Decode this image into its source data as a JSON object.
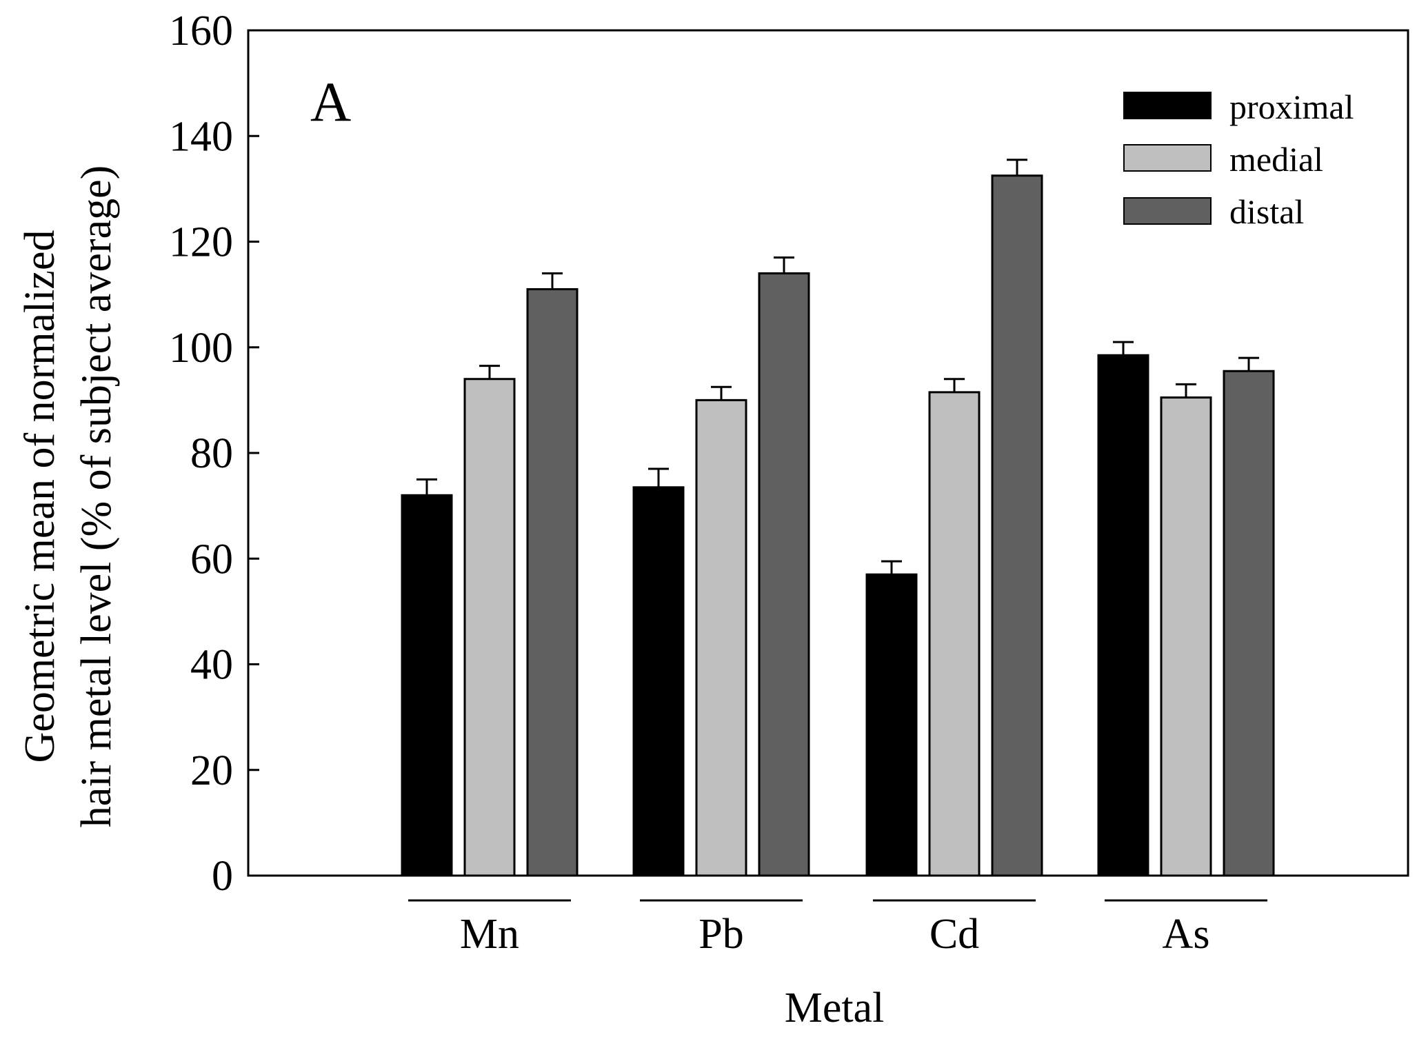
{
  "chart_data": {
    "type": "bar",
    "panel_label": "A",
    "xlabel": "Metal",
    "ylabel_lines": [
      "Geometric mean of normalized",
      "hair metal level (% of subject average)"
    ],
    "ylim": [
      0,
      160
    ],
    "yticks": [
      "0",
      "20",
      "40",
      "60",
      "80",
      "100",
      "120",
      "140",
      "160"
    ],
    "categories": [
      "Mn",
      "Pb",
      "Cd",
      "As"
    ],
    "series": [
      {
        "name": "proximal",
        "color": "#000000",
        "values": [
          72,
          73.5,
          57,
          98.5
        ],
        "errors": [
          3,
          3.5,
          2.5,
          2.5
        ]
      },
      {
        "name": "medial",
        "color": "#bfbfbf",
        "values": [
          94,
          90,
          91.5,
          90.5
        ],
        "errors": [
          2.5,
          2.5,
          2.5,
          2.5
        ]
      },
      {
        "name": "distal",
        "color": "#606060",
        "values": [
          111,
          114,
          132.5,
          95.5
        ],
        "errors": [
          3,
          3,
          3,
          2.5
        ]
      }
    ],
    "legend_position": "top-right",
    "grid": false
  }
}
